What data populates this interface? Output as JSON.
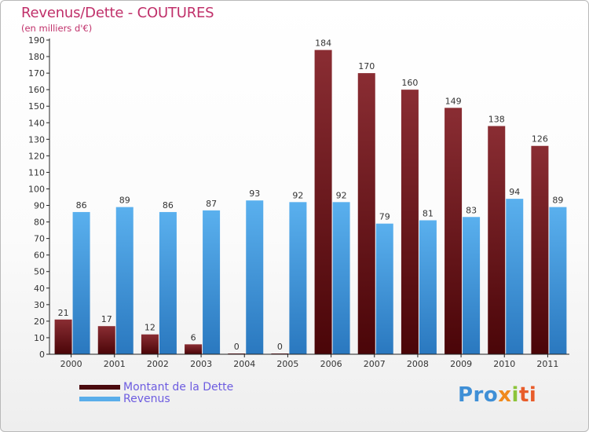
{
  "header": {
    "title": "Revenus/Dette - COUTURES",
    "subtitle": "(en milliers d'€)"
  },
  "legend": {
    "debt_label": "Montant de la Dette",
    "revenue_label": "Revenus"
  },
  "logo": {
    "p1": "Pro",
    "p2": "x",
    "p3": "i",
    "p4": "ti"
  },
  "colors": {
    "debt": "#7a1f24",
    "debt_dark": "#4a0a0e",
    "revenue": "#5aaeea",
    "revenue_dark": "#2f7fc4",
    "title": "#c0306a",
    "legend_text": "#6d5ce0"
  },
  "chart_data": {
    "type": "bar",
    "title": "Revenus/Dette - COUTURES",
    "subtitle": "(en milliers d'€)",
    "xlabel": "",
    "ylabel": "",
    "ylim": [
      0,
      190
    ],
    "ytick_step": 10,
    "grid": false,
    "legend_position": "bottom-left",
    "categories": [
      "2000",
      "2001",
      "2002",
      "2003",
      "2004",
      "2005",
      "2006",
      "2007",
      "2008",
      "2009",
      "2010",
      "2011"
    ],
    "series": [
      {
        "name": "Montant de la Dette",
        "values": [
          21,
          17,
          12,
          6,
          0,
          0,
          184,
          170,
          160,
          149,
          138,
          126
        ]
      },
      {
        "name": "Revenus",
        "values": [
          86,
          89,
          86,
          87,
          93,
          92,
          92,
          79,
          81,
          83,
          94,
          89
        ]
      }
    ]
  }
}
